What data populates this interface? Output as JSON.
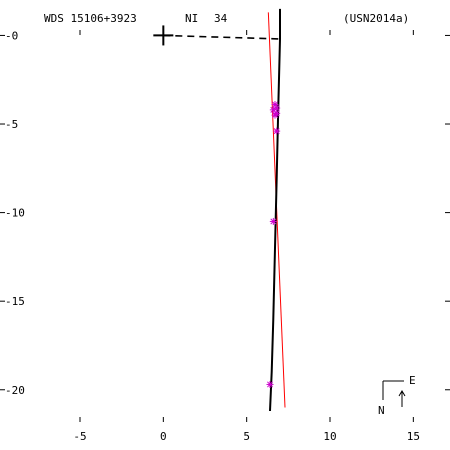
{
  "header": {
    "system": "WDS 15106+3923",
    "code": "NI",
    "count": "34",
    "reference": "(USN2014a)"
  },
  "compass": {
    "east": "E",
    "north": "N"
  },
  "colors": {
    "axis": "#000000",
    "orbit": "#000000",
    "fit_line": "#ff0000",
    "measurements": "#cc00cc"
  },
  "chart_data": {
    "type": "scatter",
    "title": "",
    "xlabel": "",
    "ylabel": "",
    "xlim": [
      -9.8,
      17.2
    ],
    "ylim": [
      -23.4,
      2.0
    ],
    "x_ticks": [
      -5,
      0,
      5,
      10,
      15
    ],
    "y_ticks": [
      0,
      -5,
      -10,
      -15,
      -20
    ],
    "x_tick_labels": [
      "-5",
      "0",
      "5",
      "10",
      "15"
    ],
    "y_tick_labels": [
      "-0",
      "-5",
      "-10",
      "-15",
      "-20"
    ],
    "primary": {
      "x": 0,
      "y": 0,
      "marker": "plus"
    },
    "measurements": [
      {
        "x": 6.7,
        "y": -3.9
      },
      {
        "x": 6.8,
        "y": -4.1
      },
      {
        "x": 6.6,
        "y": -4.2
      },
      {
        "x": 6.8,
        "y": -4.4
      },
      {
        "x": 6.7,
        "y": -4.5
      },
      {
        "x": 6.8,
        "y": -5.4
      },
      {
        "x": 6.6,
        "y": -10.5
      },
      {
        "x": 6.4,
        "y": -19.7
      }
    ],
    "orbit_track": [
      {
        "x": 7.0,
        "y": 1.5
      },
      {
        "x": 7.0,
        "y": -0.2
      },
      {
        "x": 6.9,
        "y": -4.0
      },
      {
        "x": 6.8,
        "y": -8.0
      },
      {
        "x": 6.7,
        "y": -12.0
      },
      {
        "x": 6.6,
        "y": -16.0
      },
      {
        "x": 6.5,
        "y": -19.0
      },
      {
        "x": 6.4,
        "y": -21.2
      }
    ],
    "fit_line": [
      {
        "x": 6.3,
        "y": 1.3
      },
      {
        "x": 7.3,
        "y": -21.0
      }
    ],
    "node_line": [
      {
        "x": 0.0,
        "y": 0.0
      },
      {
        "x": 7.0,
        "y": -0.2
      }
    ]
  }
}
